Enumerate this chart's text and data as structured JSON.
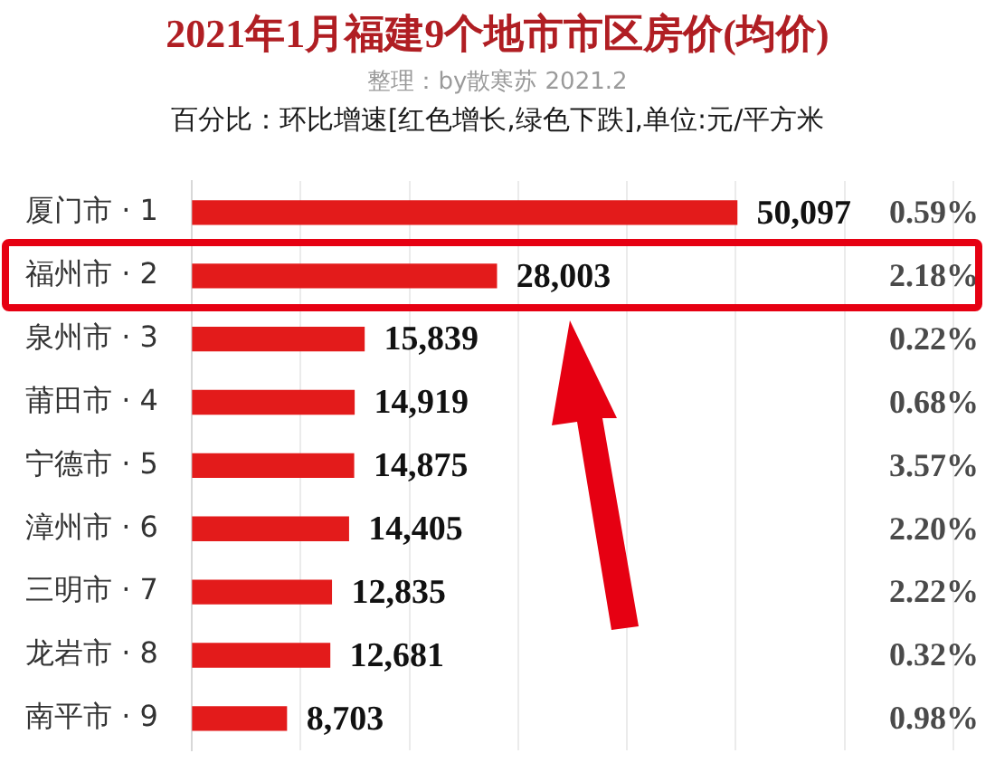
{
  "chart_data": {
    "type": "bar",
    "orientation": "horizontal",
    "title": "2021年1月福建9个地市市区房价(均价)",
    "subtitle": "整理：by散寒苏 2021.2\n百分比：环比增速[红色增长,绿色下跌],单位:元/平方米",
    "annotations": [
      "0.59%",
      "2.18%",
      "0.22%",
      "0.68%",
      "3.57%",
      "2.20%",
      "2.22%",
      "0.32%",
      "0.98%"
    ],
    "categories": [
      "厦门市 · 1",
      "福州市 · 2",
      "泉州市 · 3",
      "莆田市 · 4",
      "宁德市 · 5",
      "漳州市 · 6",
      "三明市 · 7",
      "龙岩市 · 8",
      "南平市 · 9"
    ],
    "series": [
      {
        "color": "#e31b1b",
        "values": [
          50097,
          28003,
          15839,
          14919,
          14875,
          14405,
          12835,
          12681,
          8703
        ],
        "value_labels": [
          "50,097",
          "28,003",
          "15,839",
          "14,919",
          "14,875",
          "14,405",
          "12,835",
          "12,681",
          "8,703"
        ]
      }
    ],
    "xlim": [
      0,
      70000
    ],
    "xticks": [
      {
        "value": 0,
        "label": null
      },
      {
        "value": 10000,
        "label": null
      },
      {
        "value": 20000,
        "label": null
      },
      {
        "value": 30000,
        "label": null
      },
      {
        "value": 40000,
        "label": null
      },
      {
        "value": 50000,
        "label": null
      },
      {
        "value": 60000,
        "label": null
      },
      {
        "value": 70000,
        "label": null
      }
    ],
    "grid": "x",
    "tick_labels": "y"
  }
}
